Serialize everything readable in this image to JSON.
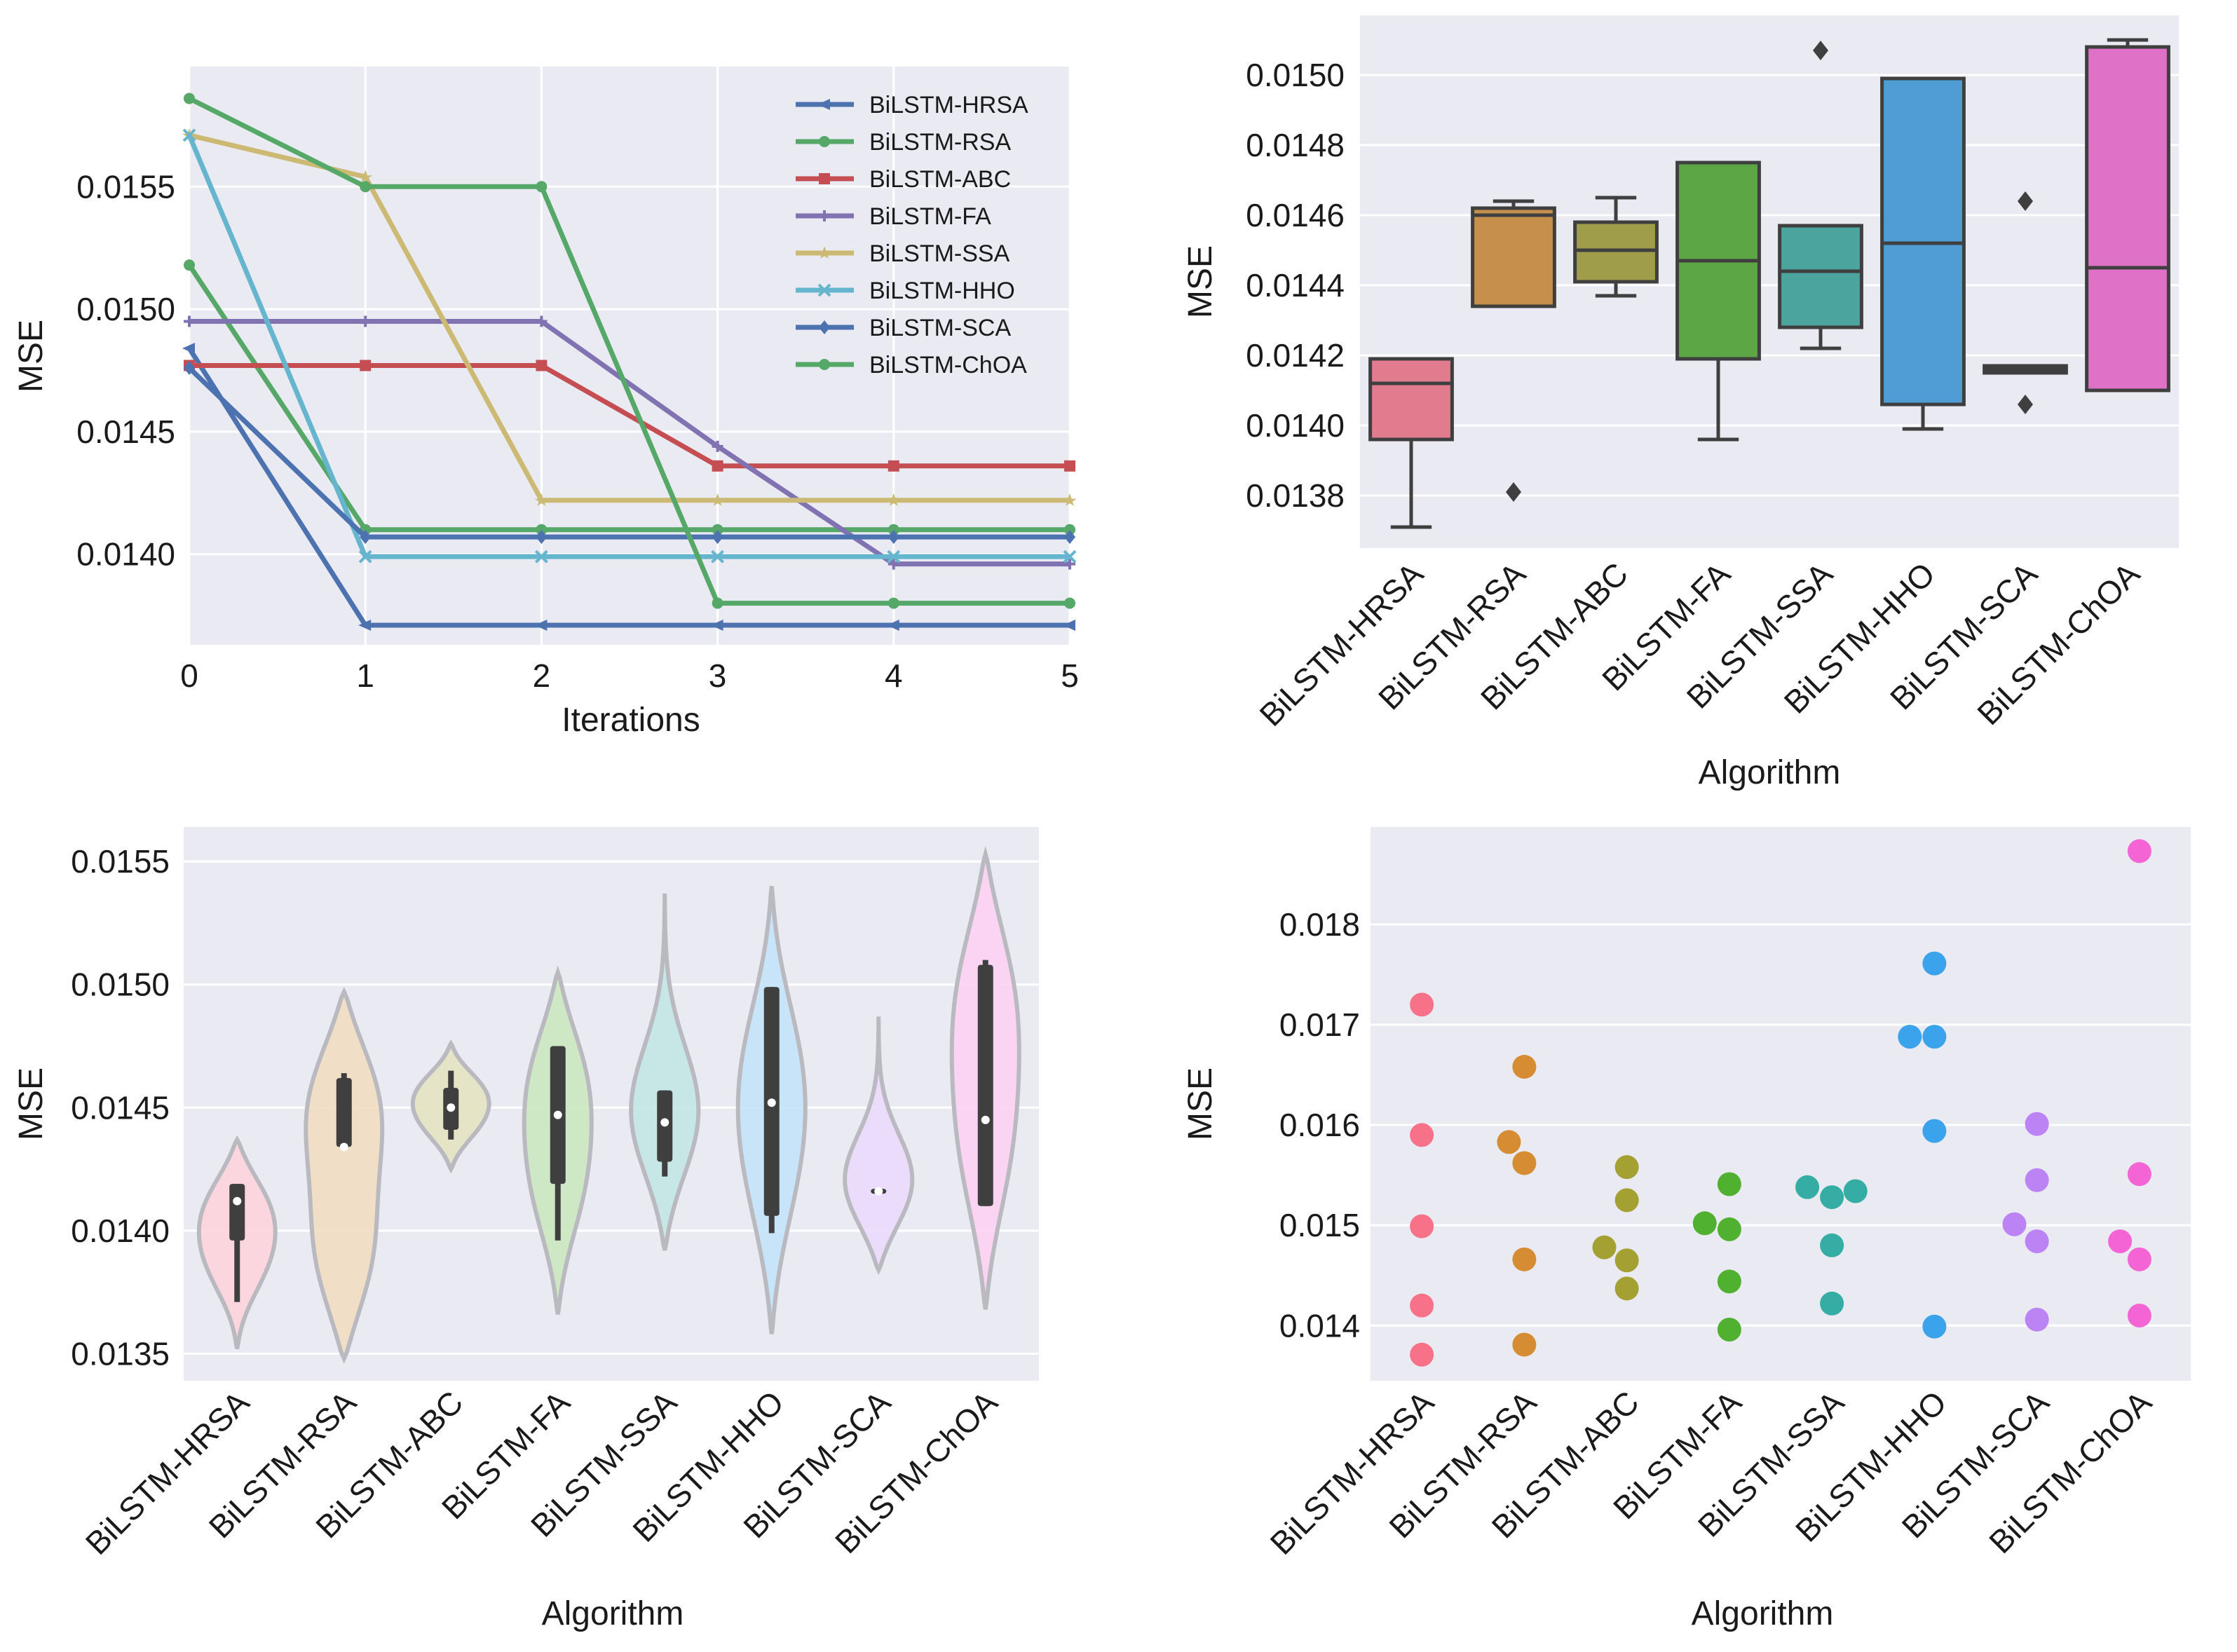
{
  "algorithms": [
    "BiLSTM-HRSA",
    "BiLSTM-RSA",
    "BiLSTM-ABC",
    "BiLSTM-FA",
    "BiLSTM-SSA",
    "BiLSTM-HHO",
    "BiLSTM-SCA",
    "BiLSTM-ChOA"
  ],
  "colors": {
    "background": "#eaeaf2",
    "grid": "#ffffff",
    "line_palette": [
      "#4c72b0",
      "#55a868",
      "#c44e52",
      "#8172b2",
      "#ccb974",
      "#64b5cd",
      "#4c72b0",
      "#55a868"
    ],
    "husl_palette": [
      "#f77189",
      "#d58c32",
      "#a4a031",
      "#50b131",
      "#36ada4",
      "#3ba3ec",
      "#bb83f4",
      "#f564d4"
    ]
  },
  "chart_data": [
    {
      "type": "line",
      "title": "",
      "xlabel": "Iterations",
      "ylabel": "MSE",
      "x": [
        0,
        1,
        2,
        3,
        4,
        5
      ],
      "xlim": [
        0,
        5
      ],
      "ylim": [
        0.01363,
        0.01599
      ],
      "xticks": [
        "0",
        "1",
        "2",
        "3",
        "4",
        "5"
      ],
      "yticks": [
        "0.0140",
        "0.0145",
        "0.0150",
        "0.0155"
      ],
      "legend_position": "top-right",
      "series": [
        {
          "name": "BiLSTM-HRSA",
          "marker": "tri",
          "values": [
            0.01484,
            0.01371,
            0.01371,
            0.01371,
            0.01371,
            0.01371
          ]
        },
        {
          "name": "BiLSTM-RSA",
          "marker": "circle",
          "values": [
            0.01518,
            0.0141,
            0.0141,
            0.0141,
            0.0141,
            0.0141
          ]
        },
        {
          "name": "BiLSTM-ABC",
          "marker": "square",
          "values": [
            0.01477,
            0.01477,
            0.01477,
            0.01436,
            0.01436,
            0.01436
          ]
        },
        {
          "name": "BiLSTM-FA",
          "marker": "plus",
          "values": [
            0.01495,
            0.01495,
            0.01495,
            0.01444,
            0.01396,
            0.01396
          ]
        },
        {
          "name": "BiLSTM-SSA",
          "marker": "star",
          "values": [
            0.01571,
            0.01554,
            0.01422,
            0.01422,
            0.01422,
            0.01422
          ]
        },
        {
          "name": "BiLSTM-HHO",
          "marker": "x",
          "values": [
            0.01571,
            0.01399,
            0.01399,
            0.01399,
            0.01399,
            0.01399
          ]
        },
        {
          "name": "BiLSTM-SCA",
          "marker": "diamond",
          "values": [
            0.01476,
            0.01407,
            0.01407,
            0.01407,
            0.01407,
            0.01407
          ]
        },
        {
          "name": "BiLSTM-ChOA",
          "marker": "circle",
          "values": [
            0.01586,
            0.0155,
            0.0155,
            0.0138,
            0.0138,
            0.0138
          ]
        }
      ]
    },
    {
      "type": "box",
      "xlabel": "Algorithm",
      "ylabel": "MSE",
      "ylim": [
        0.01365,
        0.01517
      ],
      "yticks": [
        "0.0138",
        "0.0140",
        "0.0142",
        "0.0144",
        "0.0146",
        "0.0148",
        "0.0150"
      ],
      "categories": [
        "BiLSTM-HRSA",
        "BiLSTM-RSA",
        "BiLSTM-ABC",
        "BiLSTM-FA",
        "BiLSTM-SSA",
        "BiLSTM-HHO",
        "BiLSTM-SCA",
        "BiLSTM-ChOA"
      ],
      "boxes": [
        {
          "q1": 0.01396,
          "median": 0.01412,
          "q3": 0.01419,
          "whislo": 0.01371,
          "whishi": 0.01419,
          "fliers": []
        },
        {
          "q1": 0.01434,
          "median": 0.0146,
          "q3": 0.01462,
          "whislo": 0.01434,
          "whishi": 0.01464,
          "fliers": [
            0.01381
          ]
        },
        {
          "q1": 0.01441,
          "median": 0.0145,
          "q3": 0.01458,
          "whislo": 0.01437,
          "whishi": 0.01465,
          "fliers": []
        },
        {
          "q1": 0.01419,
          "median": 0.01447,
          "q3": 0.01475,
          "whislo": 0.01396,
          "whishi": 0.01475,
          "fliers": []
        },
        {
          "q1": 0.01428,
          "median": 0.01444,
          "q3": 0.01457,
          "whislo": 0.01422,
          "whishi": 0.01457,
          "fliers": [
            0.01507
          ]
        },
        {
          "q1": 0.01406,
          "median": 0.01452,
          "q3": 0.01499,
          "whislo": 0.01399,
          "whishi": 0.01499,
          "fliers": []
        },
        {
          "q1": 0.01415,
          "median": 0.01416,
          "q3": 0.01417,
          "whislo": 0.01415,
          "whishi": 0.01417,
          "fliers": [
            0.01464,
            0.01406
          ]
        },
        {
          "q1": 0.0141,
          "median": 0.01445,
          "q3": 0.01508,
          "whislo": 0.0141,
          "whishi": 0.0151,
          "fliers": []
        }
      ]
    },
    {
      "type": "violin",
      "xlabel": "Algorithm",
      "ylabel": "MSE",
      "ylim": [
        0.01339,
        0.01564
      ],
      "yticks": [
        "0.0135",
        "0.0140",
        "0.0145",
        "0.0150",
        "0.0155"
      ],
      "categories": [
        "BiLSTM-HRSA",
        "BiLSTM-RSA",
        "BiLSTM-ABC",
        "BiLSTM-FA",
        "BiLSTM-SSA",
        "BiLSTM-HHO",
        "BiLSTM-SCA",
        "BiLSTM-ChOA"
      ],
      "violins": [
        {
          "min": 0.01352,
          "max": 0.01437,
          "median": 0.01412,
          "q1": 0.01396,
          "q3": 0.01419,
          "whislo": 0.01371,
          "whishi": 0.01419,
          "modes": [
            0.01412,
            0.01385
          ],
          "bimodal": true
        },
        {
          "min": 0.01348,
          "max": 0.01497,
          "median": 0.01434,
          "q1": 0.01434,
          "q3": 0.01462,
          "whislo": 0.01434,
          "whishi": 0.01464,
          "modes": [
            0.01455,
            0.01385
          ],
          "bimodal": true
        },
        {
          "min": 0.01425,
          "max": 0.01476,
          "median": 0.0145,
          "q1": 0.01441,
          "q3": 0.01458,
          "whislo": 0.01437,
          "whishi": 0.01465,
          "modes": [
            0.01458,
            0.01442
          ],
          "bimodal": true
        },
        {
          "min": 0.01366,
          "max": 0.01505,
          "median": 0.01447,
          "q1": 0.01419,
          "q3": 0.01475,
          "whislo": 0.01396,
          "whishi": 0.01475,
          "modes": [
            0.01465,
            0.01415
          ],
          "bimodal": false
        },
        {
          "min": 0.01392,
          "max": 0.01537,
          "median": 0.01444,
          "q1": 0.01428,
          "q3": 0.01457,
          "whislo": 0.01422,
          "whishi": 0.01457,
          "modes": [
            0.01445
          ],
          "bimodal": false
        },
        {
          "min": 0.01358,
          "max": 0.0154,
          "median": 0.01452,
          "q1": 0.01406,
          "q3": 0.01499,
          "whislo": 0.01399,
          "whishi": 0.01499,
          "modes": [
            0.0147,
            0.0142
          ],
          "bimodal": false
        },
        {
          "min": 0.01384,
          "max": 0.01487,
          "median": 0.01416,
          "q1": 0.01415,
          "q3": 0.01417,
          "whislo": 0.01415,
          "whishi": 0.01417,
          "modes": [
            0.01417
          ],
          "bimodal": false
        },
        {
          "min": 0.01368,
          "max": 0.01553,
          "median": 0.01445,
          "q1": 0.0141,
          "q3": 0.01508,
          "whislo": 0.0141,
          "whishi": 0.0151,
          "modes": [
            0.015,
            0.0143
          ],
          "bimodal": false
        }
      ]
    },
    {
      "type": "scatter",
      "xlabel": "Algorithm",
      "ylabel": "MSE",
      "ylim": [
        0.01345,
        0.01897
      ],
      "yticks": [
        "0.014",
        "0.015",
        "0.016",
        "0.017",
        "0.018"
      ],
      "categories": [
        "BiLSTM-HRSA",
        "BiLSTM-RSA",
        "BiLSTM-ABC",
        "BiLSTM-FA",
        "BiLSTM-SSA",
        "BiLSTM-HHO",
        "BiLSTM-SCA",
        "BiLSTM-ChOA"
      ],
      "points": [
        [
          {
            "o": 0,
            "y": 0.0172
          },
          {
            "o": 0,
            "y": 0.0159
          },
          {
            "o": 0,
            "y": 0.01499
          },
          {
            "o": 0,
            "y": 0.0142
          },
          {
            "o": 0,
            "y": 0.01371
          }
        ],
        [
          {
            "o": -0.15,
            "y": 0.01583
          },
          {
            "o": 0,
            "y": 0.01658
          },
          {
            "o": 0,
            "y": 0.01562
          },
          {
            "o": 0,
            "y": 0.01466
          },
          {
            "o": 0,
            "y": 0.01381
          }
        ],
        [
          {
            "o": -0.22,
            "y": 0.01478
          },
          {
            "o": 0,
            "y": 0.01558
          },
          {
            "o": 0,
            "y": 0.01525
          },
          {
            "o": 0,
            "y": 0.01465
          },
          {
            "o": 0,
            "y": 0.01437
          }
        ],
        [
          {
            "o": -0.24,
            "y": 0.01502
          },
          {
            "o": 0,
            "y": 0.01541
          },
          {
            "o": 0,
            "y": 0.01496
          },
          {
            "o": 0,
            "y": 0.01444
          },
          {
            "o": 0,
            "y": 0.01396
          }
        ],
        [
          {
            "o": -0.24,
            "y": 0.01538
          },
          {
            "o": 0,
            "y": 0.01528
          },
          {
            "o": 0.23,
            "y": 0.01534
          },
          {
            "o": 0,
            "y": 0.0148
          },
          {
            "o": 0,
            "y": 0.01422
          }
        ],
        [
          {
            "o": -0.24,
            "y": 0.01688
          },
          {
            "o": 0,
            "y": 0.01688
          },
          {
            "o": 0,
            "y": 0.01761
          },
          {
            "o": 0,
            "y": 0.01594
          },
          {
            "o": 0,
            "y": 0.01399
          }
        ],
        [
          {
            "o": -0.22,
            "y": 0.01501
          },
          {
            "o": 0,
            "y": 0.01601
          },
          {
            "o": 0,
            "y": 0.01545
          },
          {
            "o": 0,
            "y": 0.01484
          },
          {
            "o": 0,
            "y": 0.01406
          }
        ],
        [
          {
            "o": -0.19,
            "y": 0.01484
          },
          {
            "o": 0,
            "y": 0.01873
          },
          {
            "o": 0,
            "y": 0.01551
          },
          {
            "o": 0,
            "y": 0.01466
          },
          {
            "o": 0,
            "y": 0.0141
          }
        ]
      ]
    }
  ]
}
